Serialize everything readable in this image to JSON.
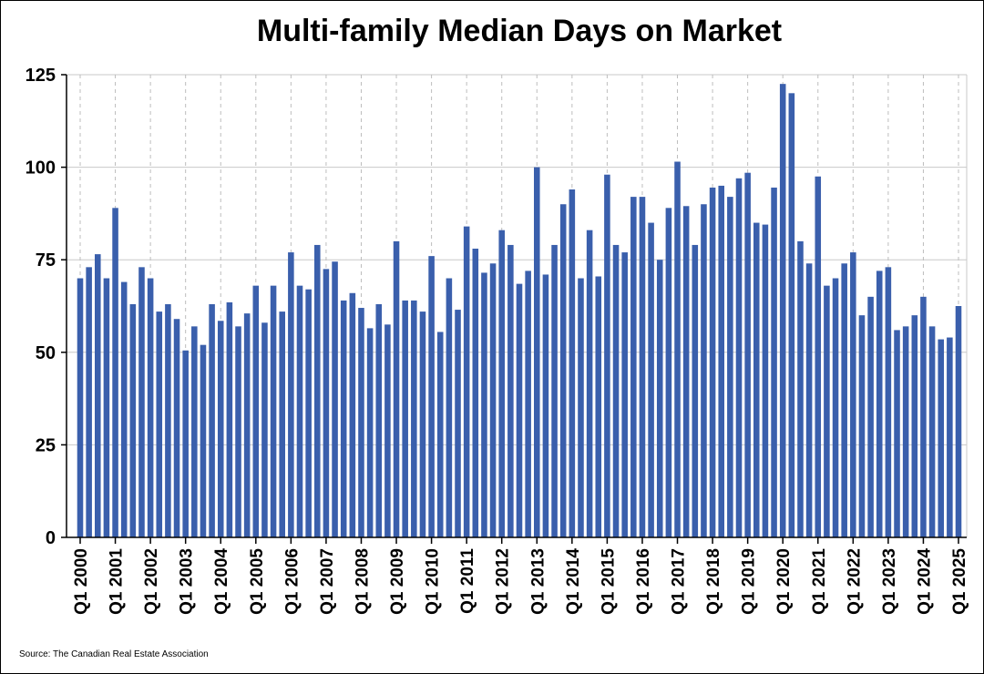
{
  "chart_data": {
    "type": "bar",
    "title": "Multi-family Median Days on Market",
    "xlabel": "",
    "ylabel": "",
    "ylim": [
      0,
      125
    ],
    "yticks": [
      0,
      25,
      50,
      75,
      100,
      125
    ],
    "grid": true,
    "bar_color": "#3a5fac",
    "x_tick_labels": [
      "Q1 2000",
      "Q1 2001",
      "Q1 2002",
      "Q1 2003",
      "Q1 2004",
      "Q1 2005",
      "Q1 2006",
      "Q1 2007",
      "Q1 2008",
      "Q1 2009",
      "Q1 2010",
      "Q1 2011",
      "Q1 2012",
      "Q1 2013",
      "Q1 2014",
      "Q1 2015",
      "Q1 2016",
      "Q1 2017",
      "Q1 2018",
      "Q1 2019",
      "Q1 2020",
      "Q1 2021",
      "Q1 2022",
      "Q1 2023",
      "Q1 2024",
      "Q1 2025"
    ],
    "categories": [
      "Q1 2000",
      "Q2 2000",
      "Q3 2000",
      "Q4 2000",
      "Q1 2001",
      "Q2 2001",
      "Q3 2001",
      "Q4 2001",
      "Q1 2002",
      "Q2 2002",
      "Q3 2002",
      "Q4 2002",
      "Q1 2003",
      "Q2 2003",
      "Q3 2003",
      "Q4 2003",
      "Q1 2004",
      "Q2 2004",
      "Q3 2004",
      "Q4 2004",
      "Q1 2005",
      "Q2 2005",
      "Q3 2005",
      "Q4 2005",
      "Q1 2006",
      "Q2 2006",
      "Q3 2006",
      "Q4 2006",
      "Q1 2007",
      "Q2 2007",
      "Q3 2007",
      "Q4 2007",
      "Q1 2008",
      "Q2 2008",
      "Q3 2008",
      "Q4 2008",
      "Q1 2009",
      "Q2 2009",
      "Q3 2009",
      "Q4 2009",
      "Q1 2010",
      "Q2 2010",
      "Q3 2010",
      "Q4 2010",
      "Q1 2011",
      "Q2 2011",
      "Q3 2011",
      "Q4 2011",
      "Q1 2012",
      "Q2 2012",
      "Q3 2012",
      "Q4 2012",
      "Q1 2013",
      "Q2 2013",
      "Q3 2013",
      "Q4 2013",
      "Q1 2014",
      "Q2 2014",
      "Q3 2014",
      "Q4 2014",
      "Q1 2015",
      "Q2 2015",
      "Q3 2015",
      "Q4 2015",
      "Q1 2016",
      "Q2 2016",
      "Q3 2016",
      "Q4 2016",
      "Q1 2017",
      "Q2 2017",
      "Q3 2017",
      "Q4 2017",
      "Q1 2018",
      "Q2 2018",
      "Q3 2018",
      "Q4 2018",
      "Q1 2019",
      "Q2 2019",
      "Q3 2019",
      "Q4 2019",
      "Q1 2020",
      "Q2 2020",
      "Q3 2020",
      "Q4 2020",
      "Q1 2021",
      "Q2 2021",
      "Q3 2021",
      "Q4 2021",
      "Q1 2022",
      "Q2 2022",
      "Q3 2022",
      "Q4 2022",
      "Q1 2023",
      "Q2 2023",
      "Q3 2023",
      "Q4 2023",
      "Q1 2024",
      "Q2 2024",
      "Q3 2024",
      "Q4 2024",
      "Q1 2025"
    ],
    "values": [
      70,
      73,
      76.5,
      70,
      89,
      69,
      63,
      73,
      70,
      61,
      63,
      59,
      50.5,
      57,
      52,
      63,
      58.5,
      63.5,
      57,
      60.5,
      68,
      58,
      68,
      61,
      77,
      68,
      67,
      79,
      72.5,
      74.5,
      64,
      66,
      62,
      56.5,
      63,
      57.5,
      80,
      64,
      64,
      61,
      76,
      55.5,
      70,
      61.5,
      84,
      78,
      71.5,
      74,
      83,
      79,
      68.5,
      72,
      100,
      71,
      79,
      90,
      94,
      70,
      83,
      70.5,
      98,
      79,
      77,
      92,
      92,
      85,
      75,
      89,
      101.5,
      89.5,
      79,
      90,
      94.5,
      95,
      92,
      97,
      98.5,
      85,
      84.5,
      94.5,
      122.5,
      120,
      80,
      74,
      97.5,
      68,
      70,
      74,
      77,
      60,
      65,
      72,
      73,
      56,
      57,
      60,
      65,
      57,
      53.5,
      54,
      62.5
    ]
  },
  "source": "Source: The Canadian Real Estate Association"
}
